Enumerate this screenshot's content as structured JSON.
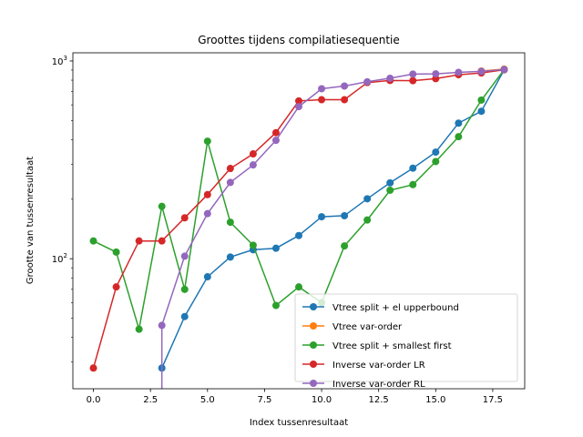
{
  "chart_data": {
    "type": "line",
    "title": "Groottes tijdens compilatiesequentie",
    "xlabel": "Index tussenresultaat",
    "ylabel": "Grootte van tussenresultaat",
    "xlim": [
      -0.9,
      18.9
    ],
    "ylim": [
      22,
      1100
    ],
    "yscale": "log",
    "grid": false,
    "legend_position": "lower-right",
    "x_ticks": [
      0.0,
      2.5,
      5.0,
      7.5,
      10.0,
      12.5,
      15.0,
      17.5
    ],
    "x_tick_labels": [
      "0.0",
      "2.5",
      "5.0",
      "7.5",
      "10.0",
      "12.5",
      "15.0",
      "17.5"
    ],
    "y_ticks": [
      100,
      1000
    ],
    "y_tick_base": "10",
    "y_tick_exponents": [
      "2",
      "3"
    ],
    "series": [
      {
        "name": "Vtree split + el upperbound",
        "color": "#1f77b4",
        "x": [
          3,
          4,
          5,
          6,
          7,
          8,
          9,
          10,
          11,
          12,
          13,
          14,
          15,
          16,
          17,
          18
        ],
        "y": [
          28,
          51,
          81,
          102,
          111,
          113,
          131,
          163,
          165,
          201,
          242,
          287,
          346,
          485,
          557,
          903
        ]
      },
      {
        "name": "Vtree var-order",
        "color": "#ff7f0e",
        "x": [
          17,
          18
        ],
        "y": [
          890,
          910
        ]
      },
      {
        "name": "Vtree split + smallest first",
        "color": "#2ca02c",
        "x": [
          0,
          1,
          2,
          3,
          4,
          5,
          6,
          7,
          8,
          9,
          10,
          11,
          12,
          13,
          14,
          15,
          16,
          17,
          18
        ],
        "y": [
          123,
          108,
          44,
          184,
          70,
          393,
          153,
          117,
          58,
          72,
          60,
          116,
          157,
          222,
          237,
          310,
          414,
          634,
          905
        ]
      },
      {
        "name": "Inverse var-order LR",
        "color": "#d62728",
        "x": [
          0,
          1,
          2,
          3,
          4,
          5,
          6,
          7,
          8,
          9,
          10,
          11,
          12,
          13,
          14,
          15,
          16,
          17,
          18
        ],
        "y": [
          28,
          72,
          123,
          123,
          161,
          211,
          286,
          339,
          434,
          628,
          637,
          637,
          778,
          797,
          795,
          814,
          852,
          870,
          903
        ]
      },
      {
        "name": "Inverse var-order RL",
        "color": "#9467bd",
        "x": [
          3,
          4,
          5,
          6,
          7,
          8,
          9,
          10,
          11,
          12,
          13,
          14,
          15,
          16,
          17,
          18
        ],
        "y": [
          46,
          103,
          169,
          243,
          298,
          397,
          588,
          724,
          747,
          785,
          818,
          858,
          861,
          876,
          886,
          905
        ]
      }
    ],
    "series_drops": [
      {
        "series_index": 4,
        "x": 3,
        "y_from": 46,
        "to_bottom": true
      }
    ]
  }
}
